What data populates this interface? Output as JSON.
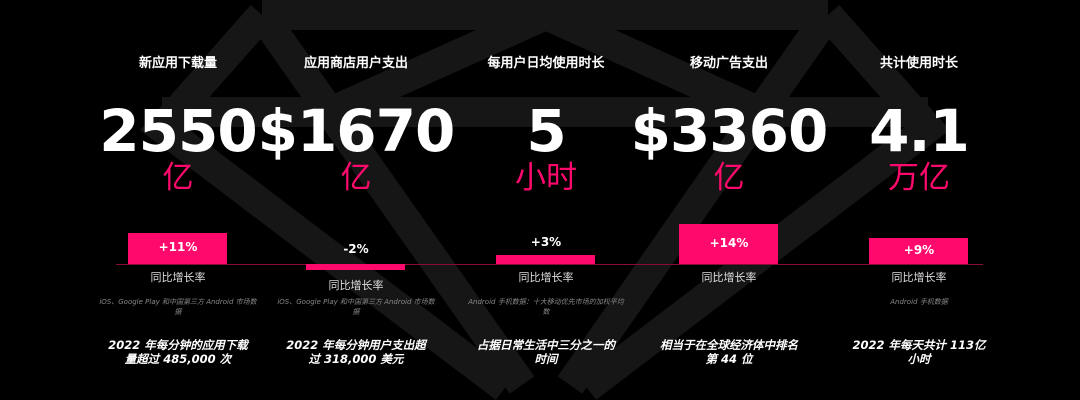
{
  "colors": {
    "accent": "#ff0a6c",
    "background": "#000000",
    "diamond": "#161616"
  },
  "yoy_label": "同比增长率",
  "metrics": [
    {
      "title": "新应用下载量",
      "value": "2550",
      "unit": "亿",
      "growth": "+11%",
      "growth_pct": 11,
      "source": "iOS、Google Play 和中国第三方 Android 市场数据",
      "note": "2022 年每分钟的应用下载量超过 485,000 次"
    },
    {
      "title": "应用商店用户支出",
      "value": "$1670",
      "unit": "亿",
      "growth": "-2%",
      "growth_pct": -2,
      "source": "iOS、Google Play 和中国第三方 Android 市场数据",
      "note": "2022 年每分钟用户支出超过 318,000 美元"
    },
    {
      "title": "每用户日均使用时长",
      "value": "5",
      "unit": "小时",
      "growth": "+3%",
      "growth_pct": 3,
      "source": "Android 手机数据：十大移动优先市场的加权平均数",
      "note": "占据日常生活中三分之一的时间"
    },
    {
      "title": "移动广告支出",
      "value": "$3360",
      "unit": "亿",
      "growth": "+14%",
      "growth_pct": 14,
      "source": "",
      "note": "相当于在全球经济体中排名第 44 位"
    },
    {
      "title": "共计使用时长",
      "value": "4.1",
      "unit": "万亿",
      "growth": "+9%",
      "growth_pct": 9,
      "source": "Android 手机数据",
      "note": "2022 年每天共计 113亿小时"
    }
  ]
}
